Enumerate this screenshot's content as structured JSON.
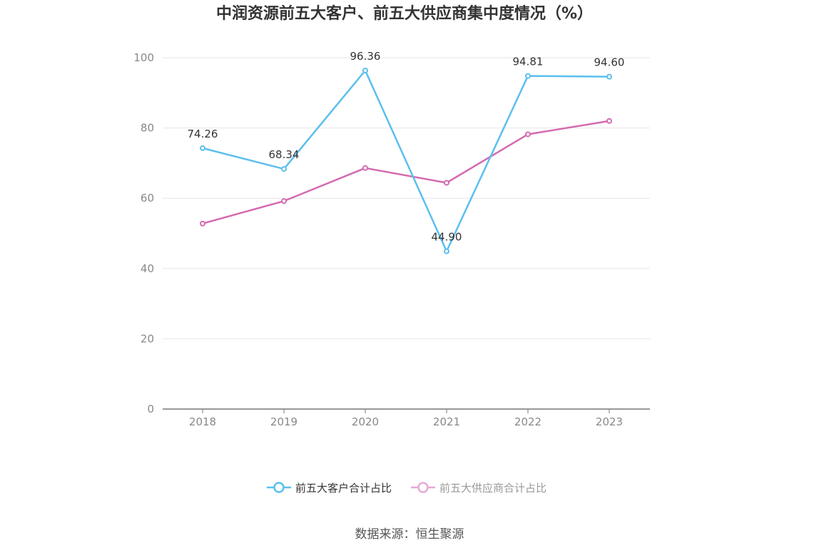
{
  "chart_data": {
    "type": "line",
    "title": "中润资源前五大客户、前五大供应商集中度情况（%）",
    "categories": [
      "2018",
      "2019",
      "2020",
      "2021",
      "2022",
      "2023"
    ],
    "series": [
      {
        "name": "前五大客户合计占比",
        "values": [
          74.26,
          68.34,
          96.36,
          44.9,
          94.81,
          94.6
        ],
        "labels": [
          "74.26",
          "68.34",
          "96.36",
          "44.90",
          "94.81",
          "94.60"
        ],
        "color": "#5bbfee",
        "show_labels": true
      },
      {
        "name": "前五大供应商合计占比",
        "values": [
          52.8,
          59.2,
          68.6,
          64.4,
          78.2,
          82.0
        ],
        "color": "#d46bb0",
        "legend_color": "#e8a8d4",
        "show_labels": false
      }
    ],
    "ylim": [
      0,
      100
    ],
    "yticks": [
      "0",
      "20",
      "40",
      "60",
      "80",
      "100"
    ],
    "grid": true,
    "legend": "bottom-center",
    "source": "数据来源：恒生聚源"
  }
}
